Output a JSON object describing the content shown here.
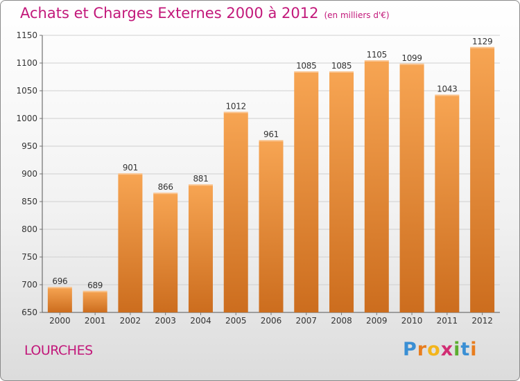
{
  "header": {
    "title": "Achats et Charges Externes 2000 à 2012",
    "subtitle": "(en milliers d'€)"
  },
  "footer": {
    "place": "LOURCHES",
    "logo": "Proxiti"
  },
  "colors": {
    "title": "#c2187a",
    "bar_top": "#f7a553",
    "bar_bottom": "#cc6d1e",
    "grid": "#cfcfcf"
  },
  "chart_data": {
    "type": "bar",
    "categories": [
      "2000",
      "2001",
      "2002",
      "2003",
      "2004",
      "2005",
      "2006",
      "2007",
      "2008",
      "2009",
      "2010",
      "2011",
      "2012"
    ],
    "values": [
      696,
      689,
      901,
      866,
      881,
      1012,
      961,
      1085,
      1085,
      1105,
      1099,
      1043,
      1129
    ],
    "ylim": [
      650,
      1150
    ],
    "yticks": [
      650,
      700,
      750,
      800,
      850,
      900,
      950,
      1000,
      1050,
      1100,
      1150
    ],
    "grid": true,
    "data_labels": true
  }
}
